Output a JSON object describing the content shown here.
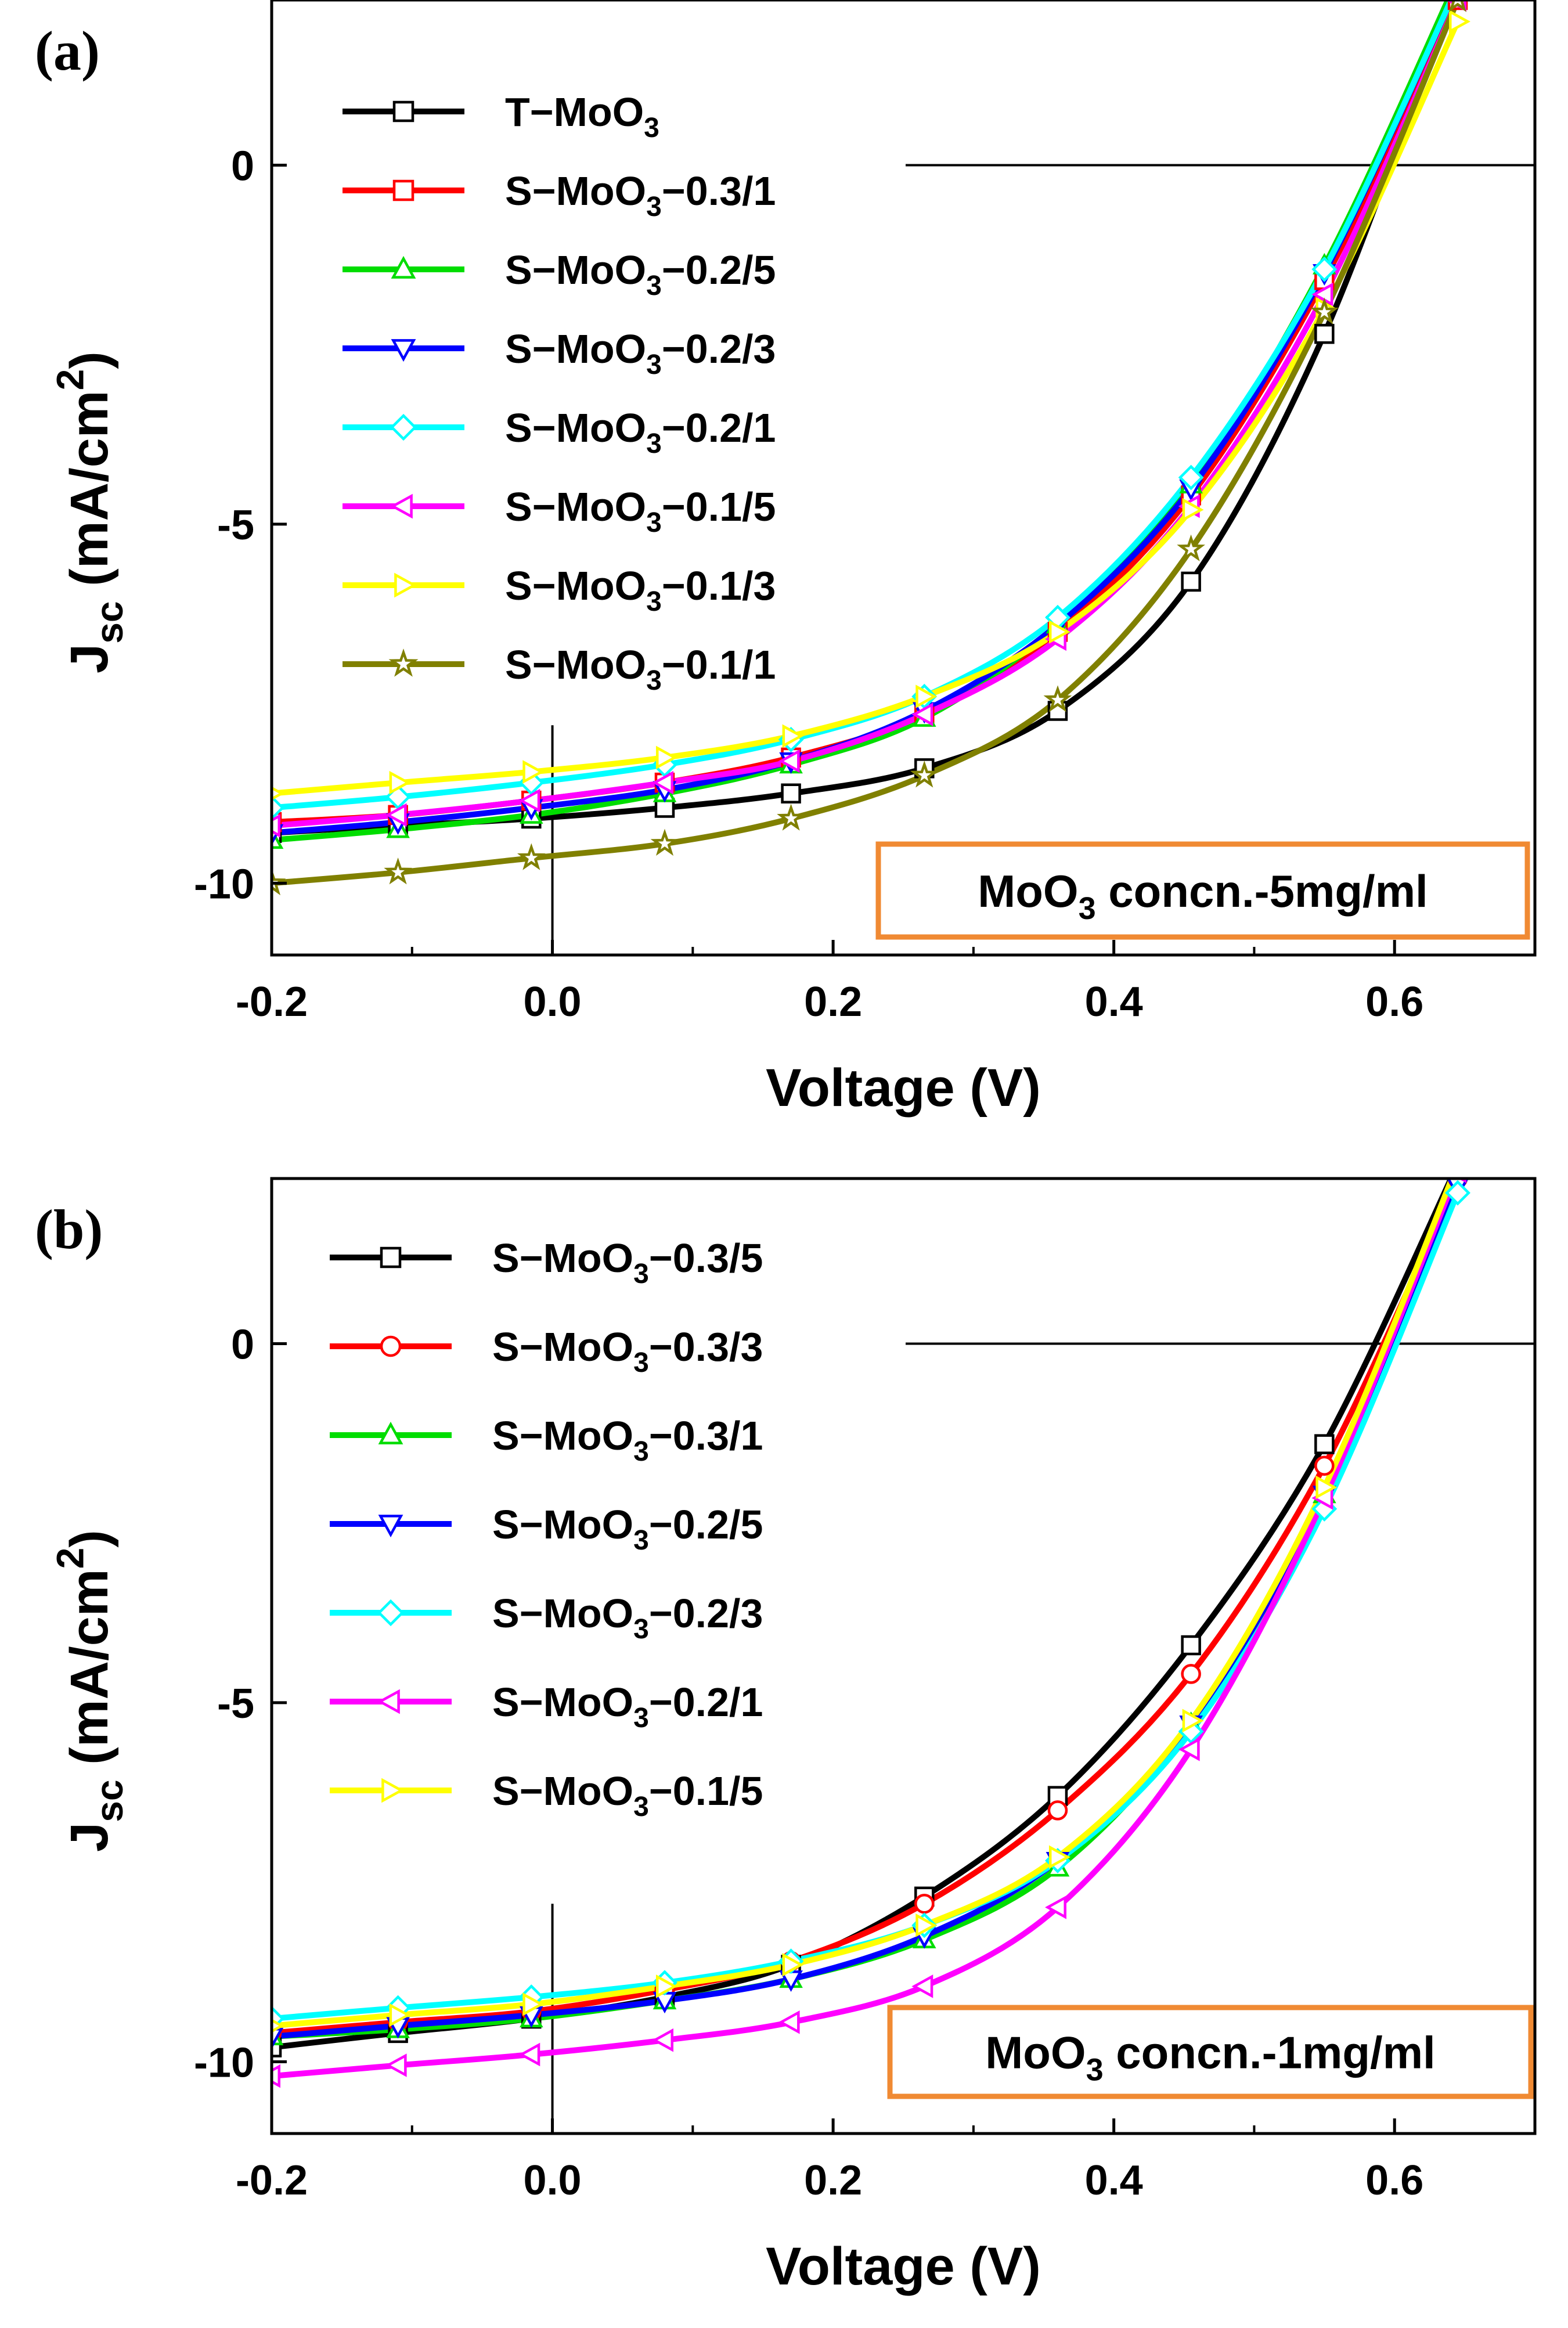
{
  "chart_data": [
    {
      "type": "line",
      "panel_label": "(a)",
      "xlabel": "Voltage (V)",
      "ylabel": "Jsc (mA/cm2)",
      "xlim": [
        -0.2,
        0.7
      ],
      "ylim": [
        -11,
        2.3
      ],
      "x_ticks": [
        -0.2,
        0.0,
        0.2,
        0.4,
        0.6
      ],
      "x_tick_labels": [
        "-0.2",
        "0.0",
        "0.2",
        "0.4",
        "0.6"
      ],
      "y_ticks": [
        0,
        -5,
        -10
      ],
      "y_tick_labels": [
        "0",
        "-5",
        "-10"
      ],
      "annotation": "MoO3 concn.-5mg/ml",
      "legend_position": "top-left",
      "series": [
        {
          "name": "T−MoO3",
          "color": "#000000",
          "marker": "square",
          "x": [
            -0.2,
            -0.11,
            -0.015,
            0.08,
            0.17,
            0.265,
            0.36,
            0.455,
            0.55,
            0.645
          ],
          "values": [
            -9.3,
            -9.2,
            -9.1,
            -8.95,
            -8.75,
            -8.4,
            -7.6,
            -5.8,
            -2.35,
            2.6
          ]
        },
        {
          "name": "S−MoO3−0.3/1",
          "color": "#ff0000",
          "marker": "square",
          "x": [
            -0.2,
            -0.11,
            -0.015,
            0.08,
            0.17,
            0.265,
            0.36,
            0.455,
            0.55,
            0.645
          ],
          "values": [
            -9.15,
            -9.05,
            -8.85,
            -8.6,
            -8.25,
            -7.65,
            -6.5,
            -4.6,
            -1.6,
            2.3
          ]
        },
        {
          "name": "S−MoO3−0.2/5",
          "color": "#00dd00",
          "marker": "triangle-up",
          "x": [
            -0.2,
            -0.11,
            -0.015,
            0.08,
            0.17,
            0.265,
            0.36,
            0.455,
            0.55,
            0.645
          ],
          "values": [
            -9.4,
            -9.25,
            -9.05,
            -8.75,
            -8.35,
            -7.7,
            -6.4,
            -4.45,
            -1.4,
            2.6
          ]
        },
        {
          "name": "S−MoO3−0.2/3",
          "color": "#0000ff",
          "marker": "triangle-down",
          "x": [
            -0.2,
            -0.11,
            -0.015,
            0.08,
            0.17,
            0.265,
            0.36,
            0.455,
            0.55,
            0.645
          ],
          "values": [
            -9.3,
            -9.15,
            -8.95,
            -8.7,
            -8.3,
            -7.6,
            -6.4,
            -4.5,
            -1.5,
            2.5
          ]
        },
        {
          "name": "S−MoO3−0.2/1",
          "color": "#00ffff",
          "marker": "diamond",
          "x": [
            -0.2,
            -0.11,
            -0.015,
            0.08,
            0.17,
            0.265,
            0.36,
            0.455,
            0.55,
            0.645
          ],
          "values": [
            -8.95,
            -8.8,
            -8.6,
            -8.35,
            -8.0,
            -7.4,
            -6.3,
            -4.35,
            -1.45,
            2.5
          ]
        },
        {
          "name": "S−MoO3−0.1/5",
          "color": "#ff00ff",
          "marker": "triangle-left",
          "x": [
            -0.2,
            -0.11,
            -0.015,
            0.08,
            0.17,
            0.265,
            0.36,
            0.455,
            0.55,
            0.645
          ],
          "values": [
            -9.2,
            -9.05,
            -8.85,
            -8.6,
            -8.3,
            -7.65,
            -6.6,
            -4.75,
            -1.8,
            2.3
          ]
        },
        {
          "name": "S−MoO3−0.1/3",
          "color": "#ffff00",
          "marker": "triangle-right",
          "x": [
            -0.2,
            -0.11,
            -0.015,
            0.08,
            0.17,
            0.265,
            0.36,
            0.455,
            0.55,
            0.645
          ],
          "values": [
            -8.75,
            -8.6,
            -8.45,
            -8.25,
            -7.95,
            -7.4,
            -6.5,
            -4.8,
            -2.0,
            2.0
          ]
        },
        {
          "name": "S−MoO3−0.1/1",
          "color": "#808000",
          "marker": "star",
          "x": [
            -0.2,
            -0.11,
            -0.015,
            0.08,
            0.17,
            0.265,
            0.36,
            0.455,
            0.55,
            0.645
          ],
          "values": [
            -10.0,
            -9.85,
            -9.65,
            -9.45,
            -9.1,
            -8.5,
            -7.45,
            -5.35,
            -2.05,
            2.3
          ]
        }
      ]
    },
    {
      "type": "line",
      "panel_label": "(b)",
      "xlabel": "Voltage (V)",
      "ylabel": "Jsc (mA/cm2)",
      "xlim": [
        -0.2,
        0.7
      ],
      "ylim": [
        -11,
        2.3
      ],
      "x_ticks": [
        -0.2,
        0.0,
        0.2,
        0.4,
        0.6
      ],
      "x_tick_labels": [
        "-0.2",
        "0.0",
        "0.2",
        "0.4",
        "0.6"
      ],
      "y_ticks": [
        0,
        -5,
        -10
      ],
      "y_tick_labels": [
        "0",
        "-5",
        "-10"
      ],
      "annotation": "MoO3 concn.-1mg/ml",
      "legend_position": "top-left",
      "series": [
        {
          "name": "S−MoO3−0.3/5",
          "color": "#000000",
          "marker": "square",
          "x": [
            -0.2,
            -0.11,
            -0.015,
            0.08,
            0.17,
            0.265,
            0.36,
            0.455,
            0.55,
            0.645
          ],
          "values": [
            -9.8,
            -9.6,
            -9.4,
            -9.1,
            -8.65,
            -7.7,
            -6.3,
            -4.2,
            -1.4,
            2.5
          ]
        },
        {
          "name": "S−MoO3−0.3/3",
          "color": "#ff0000",
          "marker": "circle",
          "x": [
            -0.2,
            -0.11,
            -0.015,
            0.08,
            0.17,
            0.265,
            0.36,
            0.455,
            0.55,
            0.645
          ],
          "values": [
            -9.6,
            -9.45,
            -9.3,
            -9.0,
            -8.6,
            -7.8,
            -6.5,
            -4.6,
            -1.7,
            2.3
          ]
        },
        {
          "name": "S−MoO3−0.3/1",
          "color": "#00dd00",
          "marker": "triangle-up",
          "x": [
            -0.2,
            -0.11,
            -0.015,
            0.08,
            0.17,
            0.265,
            0.36,
            0.455,
            0.55,
            0.645
          ],
          "values": [
            -9.65,
            -9.55,
            -9.4,
            -9.15,
            -8.85,
            -8.3,
            -7.3,
            -5.3,
            -2.1,
            2.4
          ]
        },
        {
          "name": "S−MoO3−0.2/5",
          "color": "#0000ff",
          "marker": "triangle-down",
          "x": [
            -0.2,
            -0.11,
            -0.015,
            0.08,
            0.17,
            0.265,
            0.36,
            0.455,
            0.55,
            0.645
          ],
          "values": [
            -9.65,
            -9.5,
            -9.35,
            -9.15,
            -8.85,
            -8.25,
            -7.2,
            -5.3,
            -2.1,
            2.2
          ]
        },
        {
          "name": "S−MoO3−0.2/3",
          "color": "#00ffff",
          "marker": "diamond",
          "x": [
            -0.2,
            -0.11,
            -0.015,
            0.08,
            0.17,
            0.265,
            0.36,
            0.455,
            0.55,
            0.645
          ],
          "values": [
            -9.4,
            -9.25,
            -9.1,
            -8.9,
            -8.6,
            -8.1,
            -7.2,
            -5.4,
            -2.3,
            2.1
          ]
        },
        {
          "name": "S−MoO3−0.2/1",
          "color": "#ff00ff",
          "marker": "triangle-left",
          "x": [
            -0.2,
            -0.11,
            -0.015,
            0.08,
            0.17,
            0.265,
            0.36,
            0.455,
            0.55,
            0.645
          ],
          "values": [
            -10.2,
            -10.05,
            -9.9,
            -9.7,
            -9.45,
            -8.95,
            -7.85,
            -5.65,
            -2.15,
            2.4
          ]
        },
        {
          "name": "S−MoO3−0.1/5",
          "color": "#ffff00",
          "marker": "triangle-right",
          "x": [
            -0.2,
            -0.11,
            -0.015,
            0.08,
            0.17,
            0.265,
            0.36,
            0.455,
            0.55,
            0.645
          ],
          "values": [
            -9.5,
            -9.35,
            -9.2,
            -8.95,
            -8.65,
            -8.1,
            -7.15,
            -5.25,
            -2.0,
            2.5
          ]
        }
      ]
    }
  ]
}
